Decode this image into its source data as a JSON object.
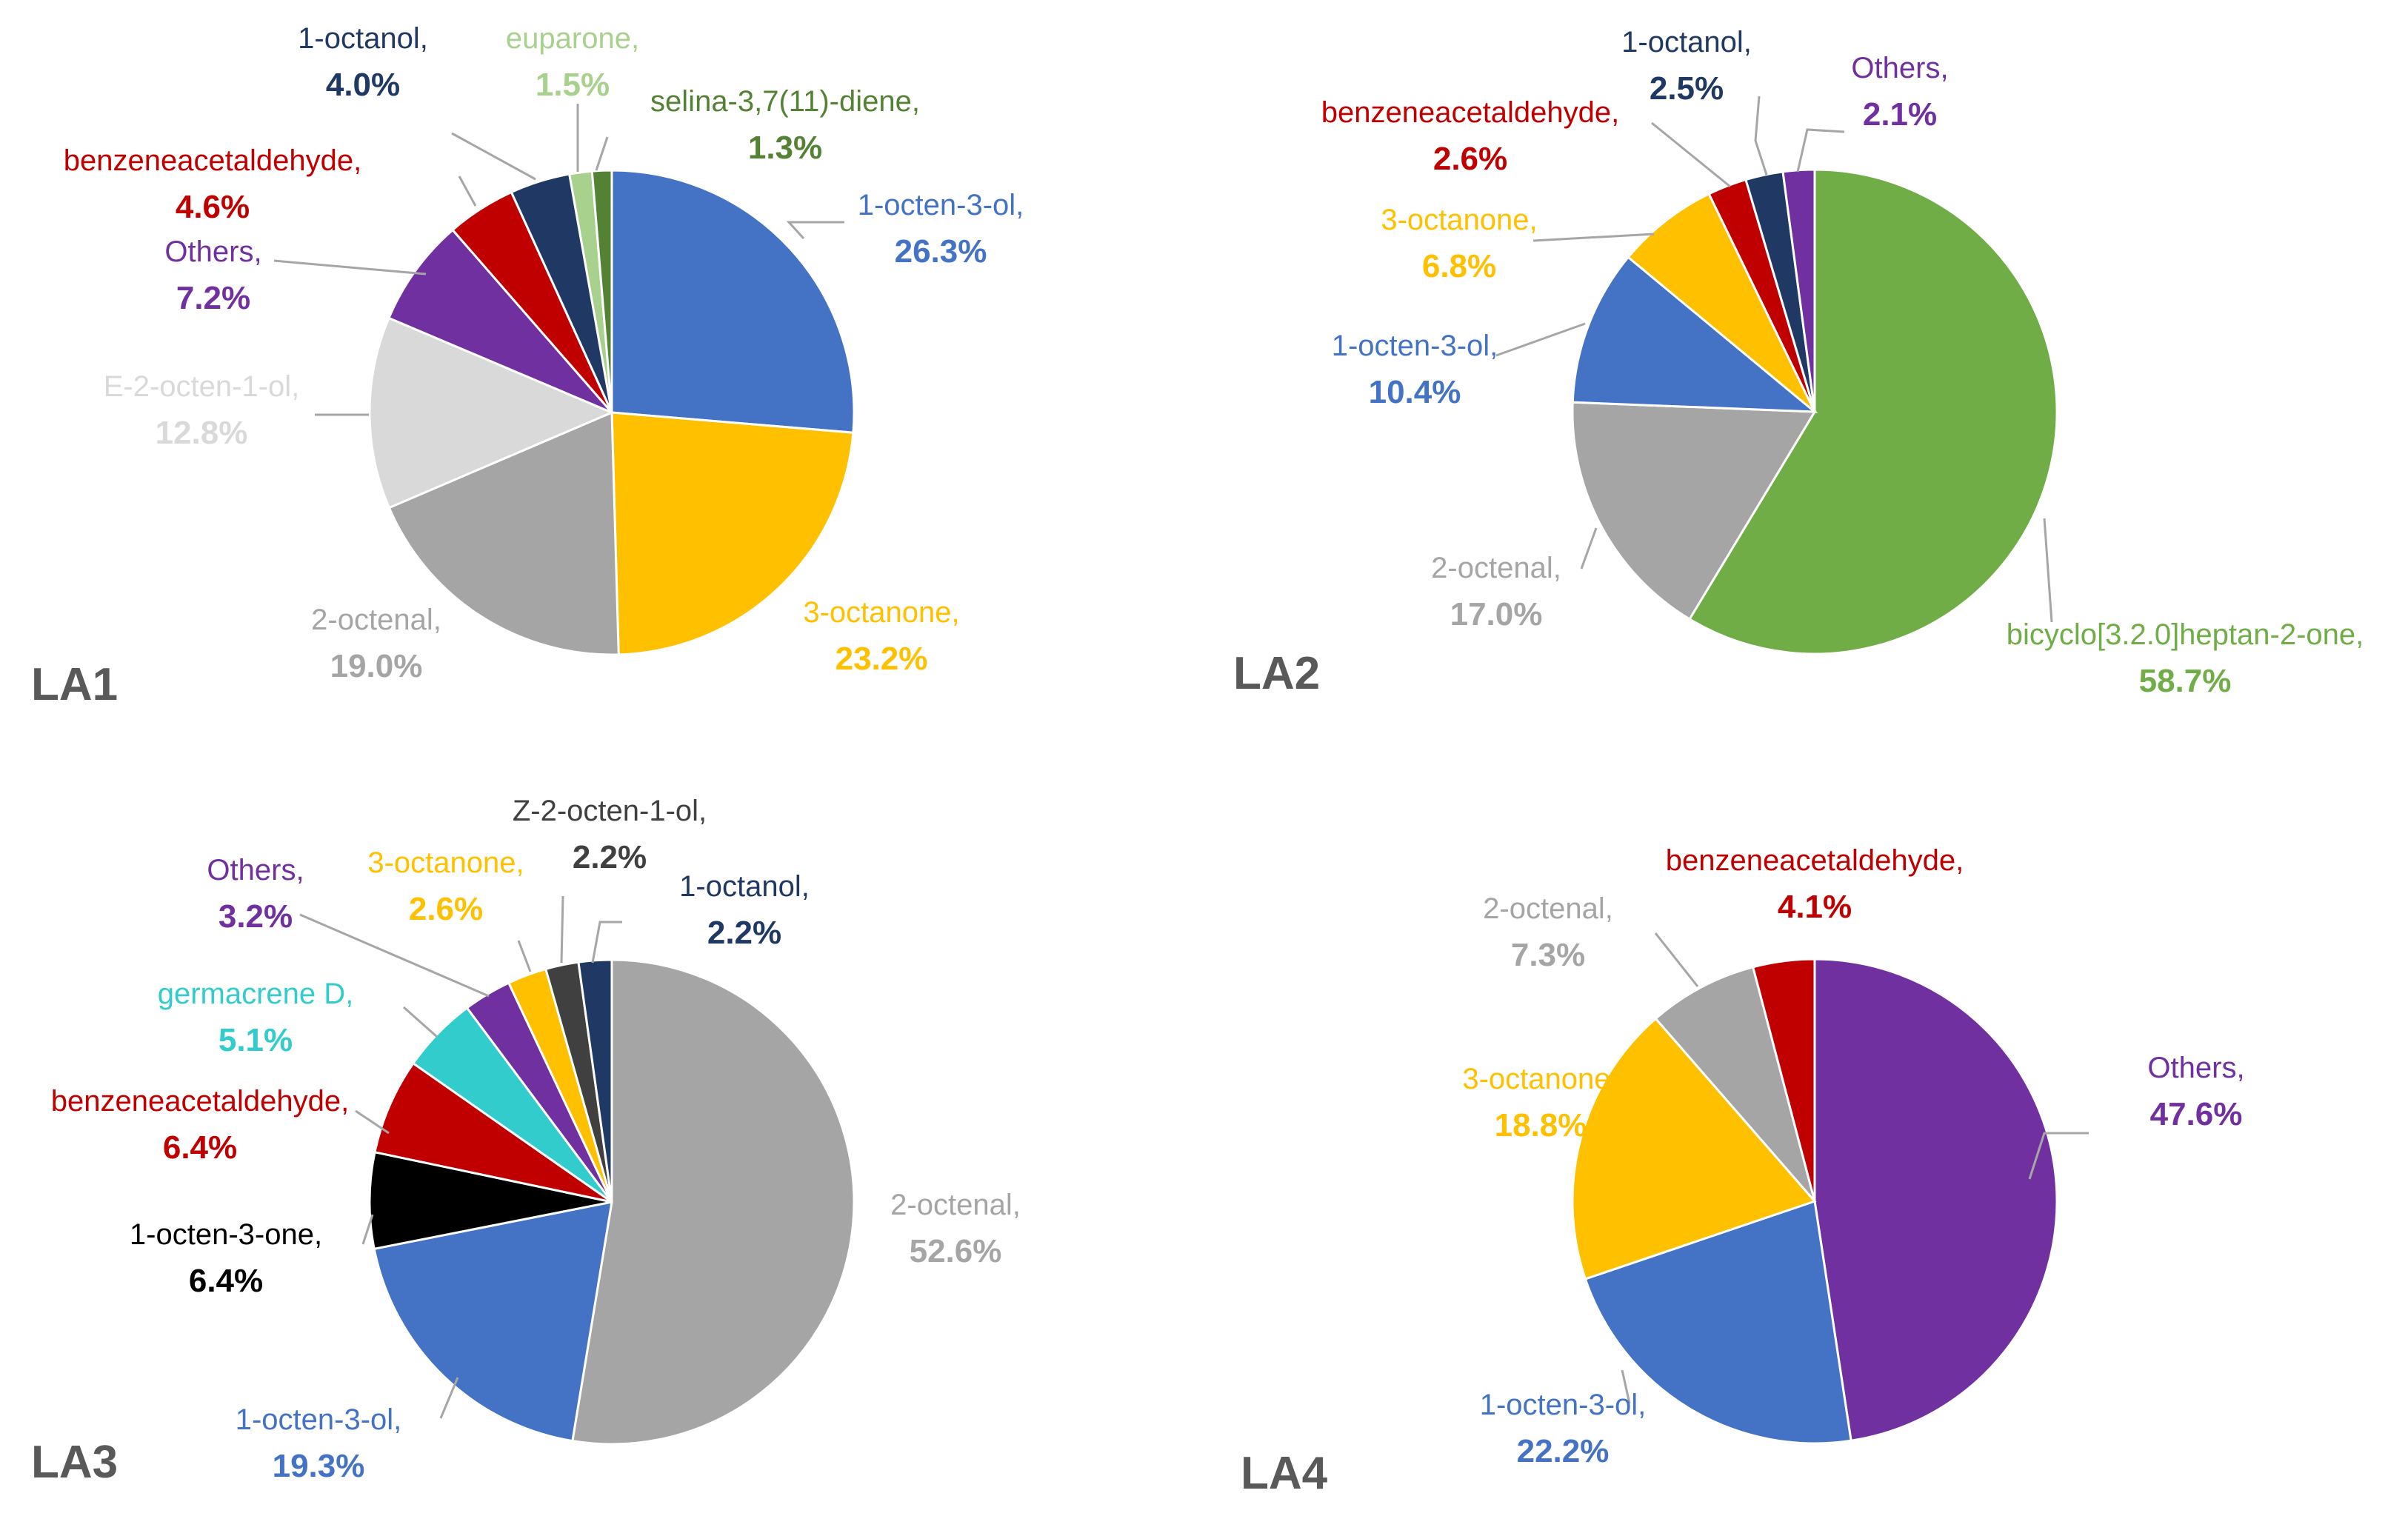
{
  "chart_data": [
    {
      "type": "pie",
      "title": "LA1",
      "slices": [
        {
          "name": "1-octen-3-ol",
          "value": 26.3,
          "label": "1-octen-3-ol,",
          "value_label": "26.3%",
          "color": "#4472C4"
        },
        {
          "name": "3-octanone",
          "value": 23.2,
          "label": "3-octanone,",
          "value_label": "23.2%",
          "color": "#FFC000"
        },
        {
          "name": "2-octenal",
          "value": 19.0,
          "label": "2-octenal,",
          "value_label": "19.0%",
          "color": "#A5A5A5"
        },
        {
          "name": "E-2-octen-1-ol",
          "value": 12.8,
          "label": "E-2-octen-1-ol,",
          "value_label": "12.8%",
          "color": "#D9D9D9"
        },
        {
          "name": "Others",
          "value": 7.2,
          "label": "Others,",
          "value_label": "7.2%",
          "color": "#7030A0"
        },
        {
          "name": "benzeneacetaldehyde",
          "value": 4.6,
          "label": "benzeneacetaldehyde,",
          "value_label": "4.6%",
          "color": "#C00000"
        },
        {
          "name": "1-octanol",
          "value": 4.0,
          "label": "1-octanol,",
          "value_label": "4.0%",
          "color": "#203864"
        },
        {
          "name": "euparone",
          "value": 1.5,
          "label": "euparone,",
          "value_label": "1.5%",
          "color": "#A9D18E"
        },
        {
          "name": "selina-3,7(11)-diene",
          "value": 1.3,
          "label": "selina-3,7(11)-diene,",
          "value_label": "1.3%",
          "color": "#548235"
        }
      ]
    },
    {
      "type": "pie",
      "title": "LA2",
      "slices": [
        {
          "name": "bicyclo[3.2.0]heptan-2-one",
          "value": 58.7,
          "label": "bicyclo[3.2.0]heptan-2-one,",
          "value_label": "58.7%",
          "color": "#70AD47"
        },
        {
          "name": "2-octenal",
          "value": 17.0,
          "label": "2-octenal,",
          "value_label": "17.0%",
          "color": "#A5A5A5"
        },
        {
          "name": "1-octen-3-ol",
          "value": 10.4,
          "label": "1-octen-3-ol,",
          "value_label": "10.4%",
          "color": "#4472C4"
        },
        {
          "name": "3-octanone",
          "value": 6.8,
          "label": "3-octanone,",
          "value_label": "6.8%",
          "color": "#FFC000"
        },
        {
          "name": "benzeneacetaldehyde",
          "value": 2.6,
          "label": "benzeneacetaldehyde,",
          "value_label": "2.6%",
          "color": "#C00000"
        },
        {
          "name": "1-octanol",
          "value": 2.5,
          "label": "1-octanol,",
          "value_label": "2.5%",
          "color": "#203864"
        },
        {
          "name": "Others",
          "value": 2.1,
          "label": "Others,",
          "value_label": "2.1%",
          "color": "#7030A0"
        }
      ]
    },
    {
      "type": "pie",
      "title": "LA3",
      "slices": [
        {
          "name": "2-octenal",
          "value": 52.6,
          "label": "2-octenal,",
          "value_label": "52.6%",
          "color": "#A5A5A5"
        },
        {
          "name": "1-octen-3-ol",
          "value": 19.3,
          "label": "1-octen-3-ol,",
          "value_label": "19.3%",
          "color": "#4472C4"
        },
        {
          "name": "1-octen-3-one",
          "value": 6.4,
          "label": "1-octen-3-one,",
          "value_label": "6.4%",
          "color": "#000000"
        },
        {
          "name": "benzeneacetaldehyde",
          "value": 6.4,
          "label": "benzeneacetaldehyde,",
          "value_label": "6.4%",
          "color": "#C00000"
        },
        {
          "name": "germacrene D",
          "value": 5.1,
          "label": "germacrene D,",
          "value_label": "5.1%",
          "color": "#33CCCC"
        },
        {
          "name": "Others",
          "value": 3.2,
          "label": "Others,",
          "value_label": "3.2%",
          "color": "#7030A0"
        },
        {
          "name": "3-octanone",
          "value": 2.6,
          "label": "3-octanone,",
          "value_label": "2.6%",
          "color": "#FFC000"
        },
        {
          "name": "Z-2-octen-1-ol",
          "value": 2.2,
          "label": "Z-2-octen-1-ol,",
          "value_label": "2.2%",
          "color": "#404040"
        },
        {
          "name": "1-octanol",
          "value": 2.2,
          "label": "1-octanol,",
          "value_label": "2.2%",
          "color": "#203864"
        }
      ]
    },
    {
      "type": "pie",
      "title": "LA4",
      "slices": [
        {
          "name": "Others",
          "value": 47.6,
          "label": "Others,",
          "value_label": "47.6%",
          "color": "#7030A0"
        },
        {
          "name": "1-octen-3-ol",
          "value": 22.2,
          "label": "1-octen-3-ol,",
          "value_label": "22.2%",
          "color": "#4472C4"
        },
        {
          "name": "3-octanone",
          "value": 18.8,
          "label": "3-octanone,",
          "value_label": "18.8%",
          "color": "#FFC000"
        },
        {
          "name": "2-octenal",
          "value": 7.3,
          "label": "2-octenal,",
          "value_label": "7.3%",
          "color": "#A5A5A5"
        },
        {
          "name": "benzeneacetaldehyde",
          "value": 4.1,
          "label": "benzeneacetaldehyde,",
          "value_label": "4.1%",
          "color": "#C00000"
        }
      ]
    }
  ],
  "label_colors": {
    "LA1": [
      "#4472C4",
      "#FFC000",
      "#A5A5A5",
      "#D9D9D9",
      "#7030A0",
      "#C00000",
      "#203864",
      "#A9D18E",
      "#548235"
    ],
    "LA2": [
      "#70AD47",
      "#A5A5A5",
      "#4472C4",
      "#FFC000",
      "#C00000",
      "#203864",
      "#7030A0"
    ],
    "LA3": [
      "#A5A5A5",
      "#4472C4",
      "#000000",
      "#C00000",
      "#33CCCC",
      "#7030A0",
      "#FFC000",
      "#404040",
      "#203864"
    ],
    "LA4": [
      "#7030A0",
      "#4472C4",
      "#FFC000",
      "#A5A5A5",
      "#C00000"
    ]
  }
}
